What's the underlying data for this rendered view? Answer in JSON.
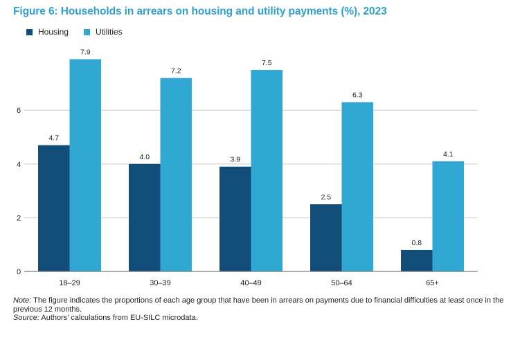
{
  "chart_data": {
    "type": "bar",
    "title": "Figure 6: Households in arrears on housing and utility payments (%), 2023",
    "xlabel": "",
    "ylabel": "",
    "categories": [
      "18–29",
      "30–39",
      "40–49",
      "50–64",
      "65+"
    ],
    "series": [
      {
        "name": "Housing",
        "color": "#124e78",
        "values": [
          4.7,
          4.0,
          3.9,
          2.5,
          0.8
        ],
        "labels": [
          "4.7",
          "4.0",
          "3.9",
          "2.5",
          "0.8"
        ]
      },
      {
        "name": "Utilities",
        "color": "#31a8d4",
        "values": [
          7.9,
          7.2,
          7.5,
          6.3,
          4.1
        ],
        "labels": [
          "7.9",
          "7.2",
          "7.5",
          "6.3",
          "4.1"
        ]
      }
    ],
    "yticks": [
      0,
      2,
      4,
      6
    ],
    "ytick_labels": [
      "0",
      "2",
      "4",
      "6"
    ],
    "ylim": [
      0,
      8.5
    ],
    "grid": true,
    "legend": "top-left"
  },
  "notes": {
    "note_label": "Note:",
    "note_text": " The figure indicates the proportions of each age group that have been in arrears on payments due to financial difficulties at least once in the previous 12 months.",
    "source_label": "Source:",
    "source_text": " Authors’ calculations from EU-SILC microdata."
  }
}
